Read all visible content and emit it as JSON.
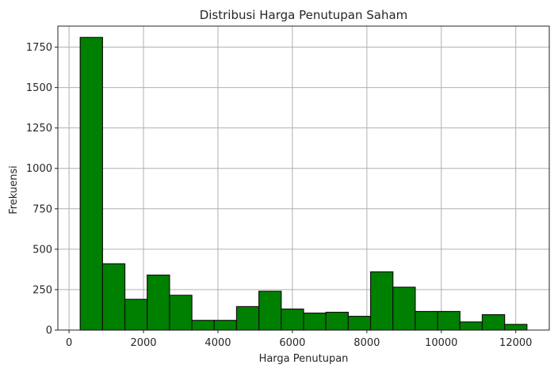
{
  "chart_data": {
    "type": "bar",
    "title": "Distribusi Harga Penutupan Saham",
    "xlabel": "Harga Penutupan",
    "ylabel": "Frekuensi",
    "bar_color": "#008000",
    "edge_color": "#111111",
    "grid": true,
    "xlim": [
      -300,
      12900
    ],
    "ylim": [
      0,
      1880
    ],
    "xticks": [
      0,
      2000,
      4000,
      6000,
      8000,
      10000,
      12000
    ],
    "yticks": [
      0,
      250,
      500,
      750,
      1000,
      1250,
      1500,
      1750
    ],
    "bins": [
      {
        "x0": 300,
        "x1": 900,
        "value": 1810
      },
      {
        "x0": 900,
        "x1": 1500,
        "value": 410
      },
      {
        "x0": 1500,
        "x1": 2100,
        "value": 190
      },
      {
        "x0": 2100,
        "x1": 2700,
        "value": 340
      },
      {
        "x0": 2700,
        "x1": 3300,
        "value": 215
      },
      {
        "x0": 3300,
        "x1": 3900,
        "value": 60
      },
      {
        "x0": 3900,
        "x1": 4500,
        "value": 60
      },
      {
        "x0": 4500,
        "x1": 5100,
        "value": 145
      },
      {
        "x0": 5100,
        "x1": 5700,
        "value": 240
      },
      {
        "x0": 5700,
        "x1": 6300,
        "value": 130
      },
      {
        "x0": 6300,
        "x1": 6900,
        "value": 105
      },
      {
        "x0": 6900,
        "x1": 7500,
        "value": 110
      },
      {
        "x0": 7500,
        "x1": 8100,
        "value": 85
      },
      {
        "x0": 8100,
        "x1": 8700,
        "value": 360
      },
      {
        "x0": 8700,
        "x1": 9300,
        "value": 265
      },
      {
        "x0": 9300,
        "x1": 9900,
        "value": 115
      },
      {
        "x0": 9900,
        "x1": 10500,
        "value": 115
      },
      {
        "x0": 10500,
        "x1": 11100,
        "value": 50
      },
      {
        "x0": 11100,
        "x1": 11700,
        "value": 95
      },
      {
        "x0": 11700,
        "x1": 12300,
        "value": 35
      }
    ]
  }
}
